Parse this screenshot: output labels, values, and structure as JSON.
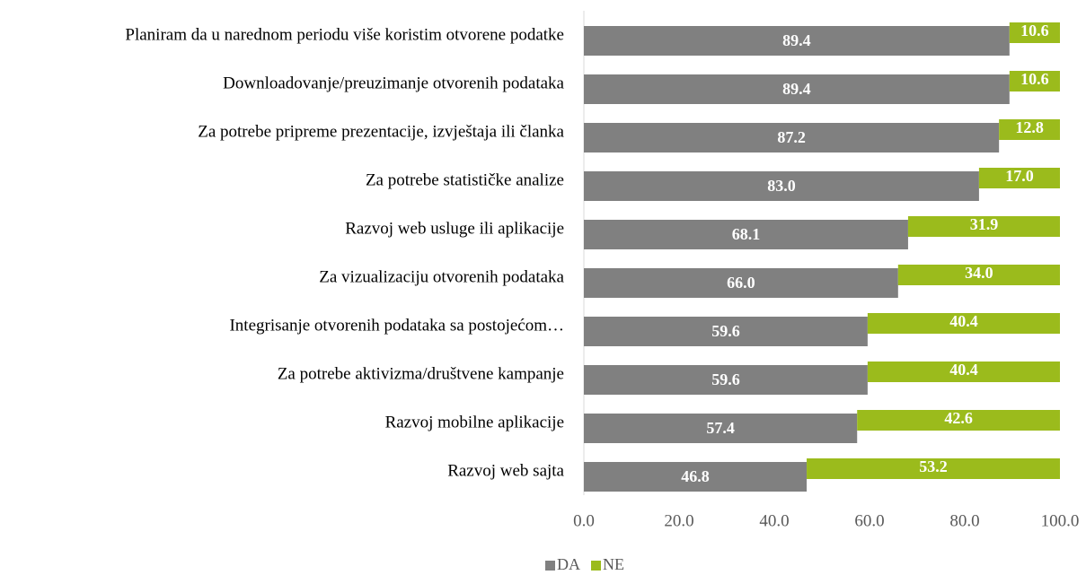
{
  "chart_data": {
    "type": "stacked-bar-horizontal",
    "categories": [
      "Planiram da u narednom periodu više koristim otvorene podatke",
      "Downloadovanje/preuzimanje otvorenih podataka",
      "Za potrebe pripreme prezentacije, izvještaja ili članka",
      "Za potrebe statističke analize",
      "Razvoj web usluge ili aplikacije",
      "Za vizualizaciju otvorenih podataka",
      "Integrisanje otvorenih podataka sa postojećom…",
      "Za potrebe aktivizma/društvene kampanje",
      "Razvoj mobilne aplikacije",
      "Razvoj web sajta"
    ],
    "series": [
      {
        "name": "DA",
        "color": "#808080",
        "values": [
          89.4,
          89.4,
          87.2,
          83.0,
          68.1,
          66.0,
          59.6,
          59.6,
          57.4,
          46.8
        ],
        "value_labels": [
          "89.4",
          "89.4",
          "87.2",
          "83.0",
          "68.1",
          "66.0",
          "59.6",
          "59.6",
          "57.4",
          "46.8"
        ]
      },
      {
        "name": "NE",
        "color": "#9bbb1c",
        "values": [
          10.6,
          10.6,
          12.8,
          17.0,
          31.9,
          34.0,
          40.4,
          40.4,
          42.6,
          53.2
        ],
        "value_labels": [
          "10.6",
          "10.6",
          "12.8",
          "17.0",
          "31.9",
          "34.0",
          "40.4",
          "40.4",
          "42.6",
          "53.2"
        ]
      }
    ],
    "xlim": [
      0,
      100
    ],
    "xticks": [
      {
        "value": 0,
        "label": "0.0"
      },
      {
        "value": 20,
        "label": "20.0"
      },
      {
        "value": 40,
        "label": "40.0"
      },
      {
        "value": 60,
        "label": "60.0"
      },
      {
        "value": 80,
        "label": "80.0"
      },
      {
        "value": 100,
        "label": "100.0"
      }
    ],
    "legend": "bottom"
  }
}
